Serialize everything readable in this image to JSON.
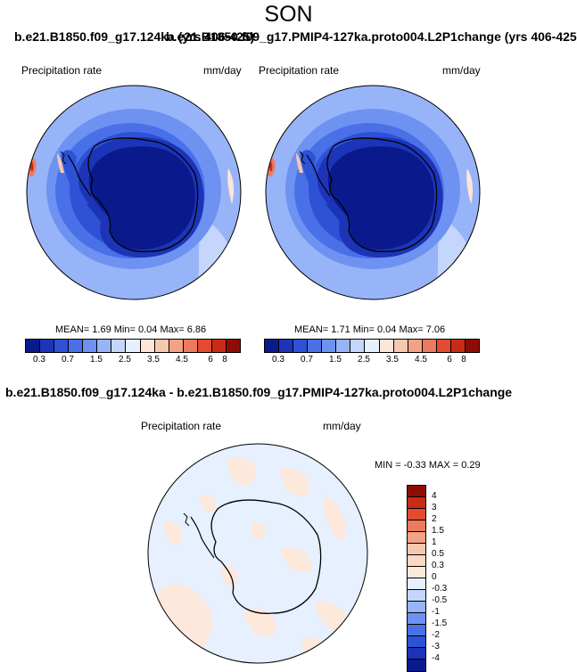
{
  "figure": {
    "season": "SON",
    "title_left": "b.e21.B1850.f09_g17.124ka (yrs 406-425)",
    "title_right": "b.e21.B1850.f09_g17.PMIP4-127ka.proto004.L2P1change (yrs 406-425)",
    "diff_title": "b.e21.B1850.f09_g17.124ka - b.e21.B1850.f09_g17.PMIP4-127ka.proto004.L2P1change"
  },
  "chart_data": [
    {
      "type": "heatmap",
      "projection": "south polar stereographic",
      "variable": "Precipitation rate",
      "units": "mm/day",
      "mean_label": "MEAN=",
      "min_label": "Min=",
      "max_label": "Max=",
      "mean": "1.69",
      "min": "0.04",
      "max": "6.86",
      "colorbar_ticks": [
        "0.3",
        "0.7",
        "1.5",
        "2.5",
        "3.5",
        "4.5",
        "6",
        "8"
      ],
      "colorbar_colors": [
        "#0a1a8c",
        "#1c34b8",
        "#2e52d6",
        "#4a70e8",
        "#6e92f2",
        "#98b4f8",
        "#c4d6fc",
        "#e6f0ff",
        "#fde5d8",
        "#f8c7b0",
        "#f2a285",
        "#ec7a5c",
        "#e34a30",
        "#c92c14",
        "#8f0c06"
      ]
    },
    {
      "type": "heatmap",
      "projection": "south polar stereographic",
      "variable": "Precipitation rate",
      "units": "mm/day",
      "mean_label": "MEAN=",
      "min_label": "Min=",
      "max_label": "Max=",
      "mean": "1.71",
      "min": "0.04",
      "max": "7.06",
      "colorbar_ticks": [
        "0.3",
        "0.7",
        "1.5",
        "2.5",
        "3.5",
        "4.5",
        "6",
        "8"
      ],
      "colorbar_colors": [
        "#0a1a8c",
        "#1c34b8",
        "#2e52d6",
        "#4a70e8",
        "#6e92f2",
        "#98b4f8",
        "#c4d6fc",
        "#e6f0ff",
        "#fde5d8",
        "#f8c7b0",
        "#f2a285",
        "#ec7a5c",
        "#e34a30",
        "#c92c14",
        "#8f0c06"
      ]
    },
    {
      "type": "heatmap",
      "projection": "south polar stereographic",
      "variable": "Precipitation rate",
      "units": "mm/day",
      "min_label": "MIN =",
      "max_label": "MAX =",
      "min": "-0.33",
      "max": "0.29",
      "colorbar_ticks": [
        "4",
        "3",
        "2",
        "1.5",
        "1",
        "0.5",
        "0.3",
        "0",
        "-0.3",
        "-0.5",
        "-1",
        "-1.5",
        "-2",
        "-3",
        "-4"
      ],
      "colorbar_colors": [
        "#8f0c06",
        "#c92c14",
        "#e34a30",
        "#ec7a5c",
        "#f2a285",
        "#f8c7b0",
        "#fbd8c4",
        "#fde8dc",
        "#e6f0ff",
        "#c4d6fc",
        "#98b4f8",
        "#6e92f2",
        "#4a70e8",
        "#2e52d6",
        "#1c34b8",
        "#0a1a8c"
      ]
    }
  ]
}
